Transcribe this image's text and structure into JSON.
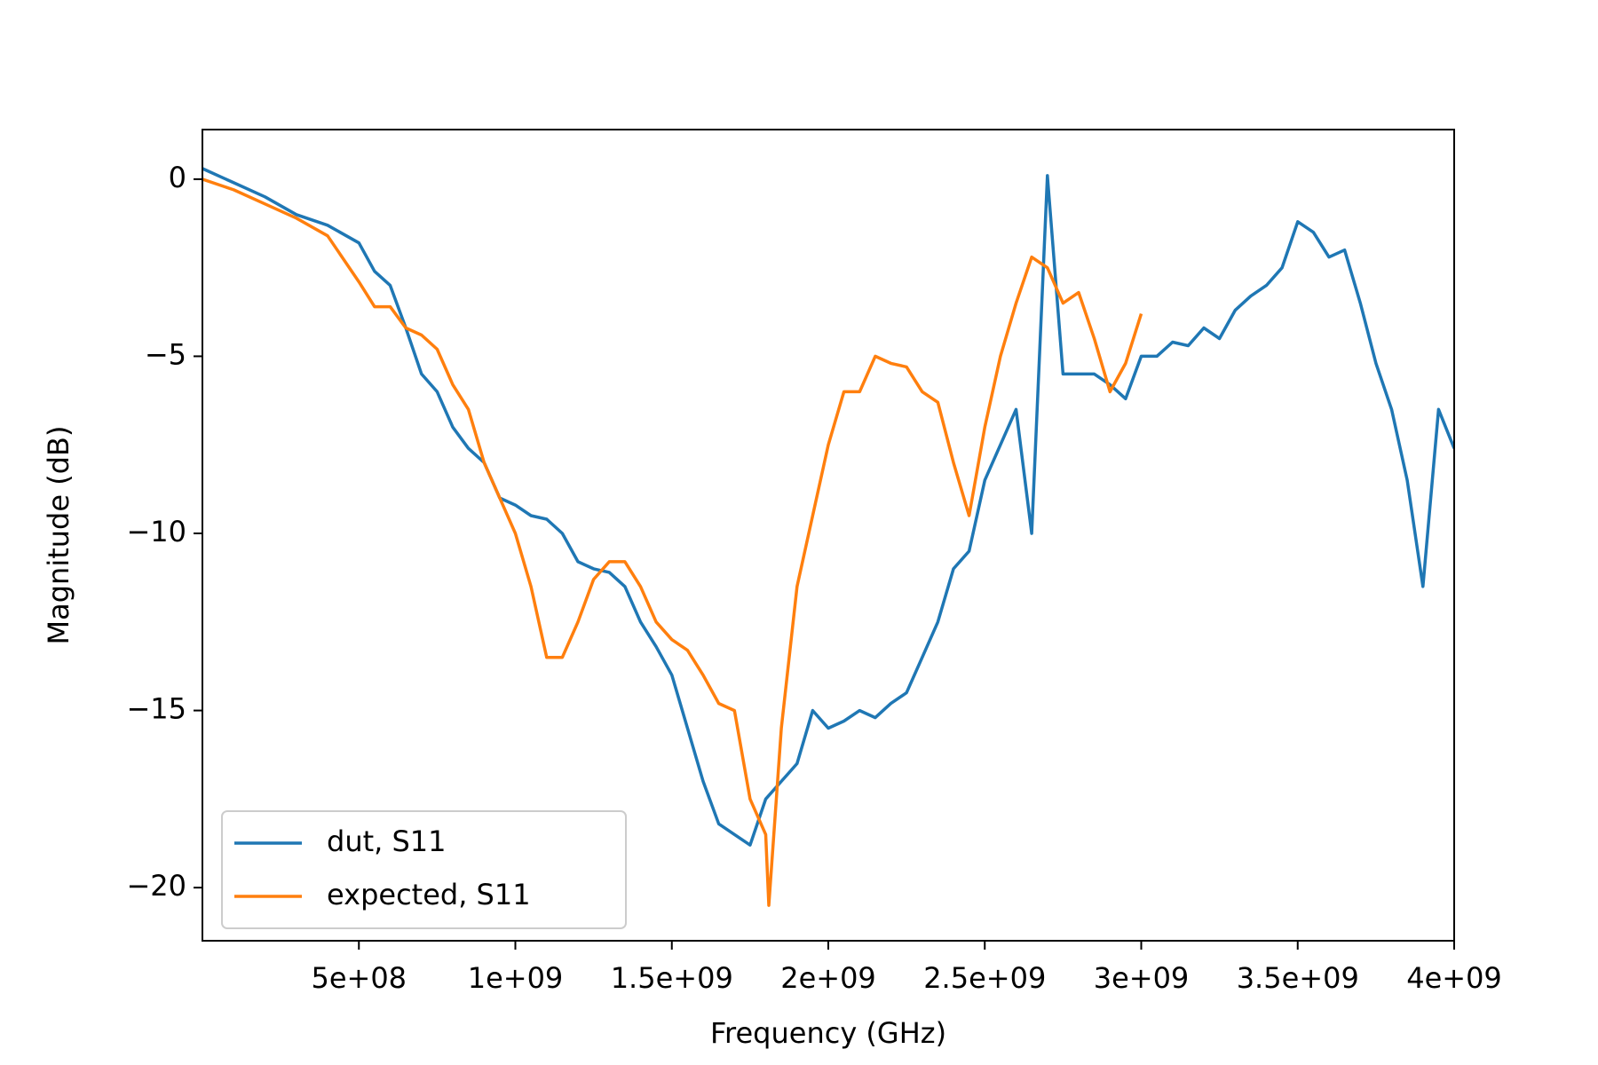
{
  "chart_data": {
    "type": "line",
    "x_label": "Frequency (GHz)",
    "y_label": "Magnitude (dB)",
    "xlim": [
      0,
      4000000000.0
    ],
    "ylim": [
      -21.5,
      1.4
    ],
    "xticks": [
      {
        "value": 500000000.0,
        "label": "5e+08"
      },
      {
        "value": 1000000000.0,
        "label": "1e+09"
      },
      {
        "value": 1500000000.0,
        "label": "1.5e+09"
      },
      {
        "value": 2000000000.0,
        "label": "2e+09"
      },
      {
        "value": 2500000000.0,
        "label": "2.5e+09"
      },
      {
        "value": 3000000000.0,
        "label": "3e+09"
      },
      {
        "value": 3500000000.0,
        "label": "3.5e+09"
      },
      {
        "value": 4000000000.0,
        "label": "4e+09"
      }
    ],
    "yticks": [
      {
        "value": -20,
        "label": "−20"
      },
      {
        "value": -15,
        "label": "−15"
      },
      {
        "value": -10,
        "label": "−10"
      },
      {
        "value": -5,
        "label": "−5"
      },
      0
    ],
    "legend": "lower left",
    "series": [
      {
        "name": "dut, S11",
        "color": "#1f77b4",
        "x": [
          0,
          100000000.0,
          200000000.0,
          300000000.0,
          400000000.0,
          500000000.0,
          550000000.0,
          600000000.0,
          650000000.0,
          700000000.0,
          750000000.0,
          800000000.0,
          850000000.0,
          900000000.0,
          950000000.0,
          1000000000.0,
          1050000000.0,
          1100000000.0,
          1150000000.0,
          1200000000.0,
          1250000000.0,
          1300000000.0,
          1350000000.0,
          1400000000.0,
          1450000000.0,
          1500000000.0,
          1550000000.0,
          1600000000.0,
          1650000000.0,
          1700000000.0,
          1750000000.0,
          1800000000.0,
          1850000000.0,
          1900000000.0,
          1950000000.0,
          2000000000.0,
          2050000000.0,
          2100000000.0,
          2150000000.0,
          2200000000.0,
          2250000000.0,
          2300000000.0,
          2350000000.0,
          2400000000.0,
          2450000000.0,
          2500000000.0,
          2550000000.0,
          2600000000.0,
          2650000000.0,
          2700000000.0,
          2750000000.0,
          2800000000.0,
          2850000000.0,
          2900000000.0,
          2950000000.0,
          3000000000.0,
          3050000000.0,
          3100000000.0,
          3150000000.0,
          3200000000.0,
          3250000000.0,
          3300000000.0,
          3350000000.0,
          3400000000.0,
          3450000000.0,
          3500000000.0,
          3550000000.0,
          3600000000.0,
          3650000000.0,
          3700000000.0,
          3750000000.0,
          3800000000.0,
          3850000000.0,
          3900000000.0,
          3950000000.0,
          4000000000.0
        ],
        "values": [
          0.3,
          -0.1,
          -0.5,
          -1.0,
          -1.3,
          -1.8,
          -2.6,
          -3.0,
          -4.2,
          -5.5,
          -6.0,
          -7.0,
          -7.6,
          -8.0,
          -9.0,
          -9.2,
          -9.5,
          -9.6,
          -10.0,
          -10.8,
          -11.0,
          -11.1,
          -11.5,
          -12.5,
          -13.2,
          -14.0,
          -15.5,
          -17.0,
          -18.2,
          -18.5,
          -18.8,
          -17.5,
          -17.0,
          -16.5,
          -15.0,
          -15.5,
          -15.3,
          -15.0,
          -15.2,
          -14.8,
          -14.5,
          -13.5,
          -12.5,
          -11.0,
          -10.5,
          -8.5,
          -7.5,
          -6.5,
          -10.0,
          0.1,
          -5.5,
          -5.5,
          -5.5,
          -5.8,
          -6.2,
          -5.0,
          -5.0,
          -4.6,
          -4.7,
          -4.2,
          -4.5,
          -3.7,
          -3.3,
          -3.0,
          -2.5,
          -1.2,
          -1.5,
          -2.2,
          -2.0,
          -3.5,
          -5.2,
          -6.5,
          -8.5,
          -11.5,
          -6.5,
          -7.6
        ]
      },
      {
        "name": "expected, S11",
        "color": "#ff7f0e",
        "x": [
          0,
          100000000.0,
          200000000.0,
          300000000.0,
          400000000.0,
          500000000.0,
          550000000.0,
          600000000.0,
          650000000.0,
          700000000.0,
          750000000.0,
          800000000.0,
          850000000.0,
          900000000.0,
          950000000.0,
          1000000000.0,
          1050000000.0,
          1100000000.0,
          1150000000.0,
          1200000000.0,
          1250000000.0,
          1300000000.0,
          1350000000.0,
          1400000000.0,
          1450000000.0,
          1500000000.0,
          1550000000.0,
          1600000000.0,
          1650000000.0,
          1700000000.0,
          1750000000.0,
          1800000000.0,
          1810000000.0,
          1850000000.0,
          1900000000.0,
          1950000000.0,
          2000000000.0,
          2050000000.0,
          2100000000.0,
          2150000000.0,
          2200000000.0,
          2250000000.0,
          2300000000.0,
          2350000000.0,
          2400000000.0,
          2450000000.0,
          2500000000.0,
          2550000000.0,
          2600000000.0,
          2650000000.0,
          2700000000.0,
          2750000000.0,
          2800000000.0,
          2850000000.0,
          2900000000.0,
          2950000000.0,
          3000000000.0
        ],
        "values": [
          0,
          -0.3,
          -0.7,
          -1.1,
          -1.6,
          -2.9,
          -3.6,
          -3.6,
          -4.2,
          -4.4,
          -4.8,
          -5.8,
          -6.5,
          -8.0,
          -9.0,
          -10.0,
          -11.5,
          -13.5,
          -13.5,
          -12.5,
          -11.3,
          -10.8,
          -10.8,
          -11.5,
          -12.5,
          -13.0,
          -13.3,
          -14.0,
          -14.8,
          -15.0,
          -17.5,
          -18.5,
          -20.5,
          -15.5,
          -11.5,
          -9.5,
          -7.5,
          -6.0,
          -6.0,
          -5.0,
          -5.2,
          -5.3,
          -6.0,
          -6.3,
          -8.0,
          -9.5,
          -7.0,
          -5.0,
          -3.5,
          -2.2,
          -2.5,
          -3.5,
          -3.2,
          -4.5,
          -6.0,
          -5.2,
          -3.8
        ]
      }
    ]
  }
}
